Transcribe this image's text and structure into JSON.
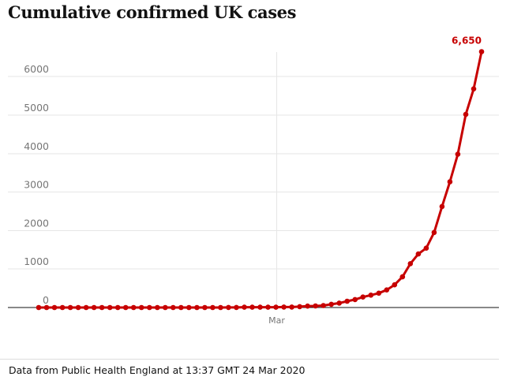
{
  "chart_data": {
    "type": "line",
    "title": "Cumulative confirmed UK cases",
    "xlabel": "",
    "ylabel": "",
    "ylim": [
      0,
      6650
    ],
    "y_ticks": [
      "0",
      "1000",
      "2000",
      "3000",
      "4000",
      "5000",
      "6000"
    ],
    "x_ticks": [
      {
        "label": "Mar",
        "index": 30
      }
    ],
    "grid": "horizontal",
    "series": [
      {
        "name": "Cumulative confirmed UK cases",
        "color": "#c70000",
        "values": [
          0,
          0,
          0,
          0,
          0,
          0,
          0,
          0,
          0,
          0,
          0,
          0,
          0,
          0,
          0,
          0,
          0,
          0,
          0,
          0,
          0,
          0,
          0,
          0,
          2,
          2,
          8,
          8,
          9,
          9,
          9,
          13,
          13,
          23,
          36,
          40,
          51,
          85,
          115,
          163,
          206,
          273,
          321,
          373,
          456,
          590,
          798,
          1140,
          1391,
          1543,
          1950,
          2626,
          3269,
          3983,
          5018,
          5683,
          6650
        ]
      }
    ],
    "annotation": {
      "label": "6,650",
      "index": 56
    },
    "source": "Data from Public Health England at 13:37 GMT 24 Mar 2020"
  }
}
